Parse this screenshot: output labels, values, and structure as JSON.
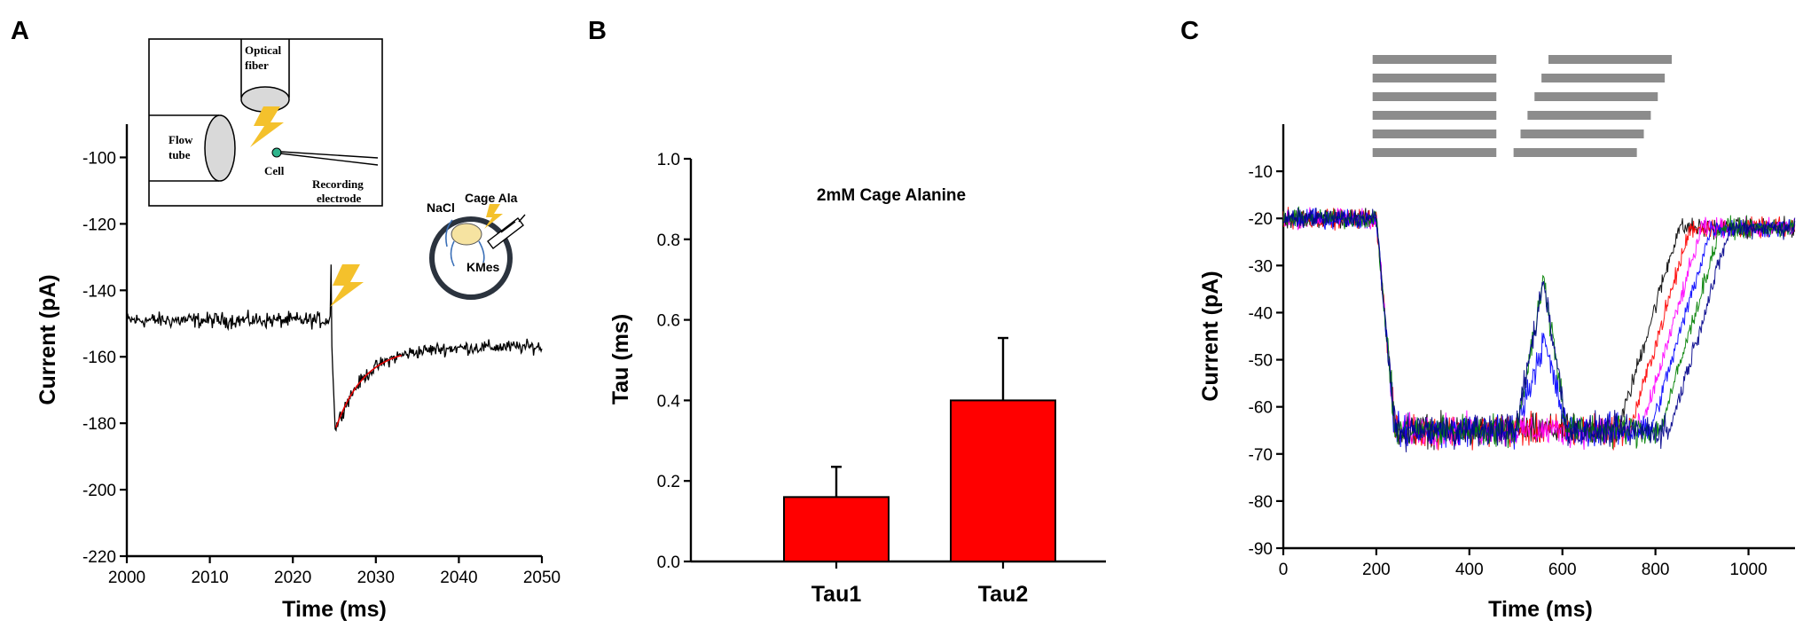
{
  "chart_data": [
    {
      "panel": "A",
      "type": "line",
      "xlabel": "Time (ms)",
      "ylabel": "Current (pA)",
      "xlim": [
        2000,
        2050
      ],
      "ylim": [
        -220,
        -90
      ],
      "xticks": [
        2000,
        2010,
        2020,
        2030,
        2040,
        2050
      ],
      "yticks": [
        -220,
        -200,
        -180,
        -160,
        -140,
        -120,
        -100
      ],
      "baseline": -149,
      "flash_time": 2024.6,
      "peak": -182,
      "recovery_end": -157,
      "fit_color": "#e60000",
      "trace_color": "#000000",
      "inset": {
        "optical_fiber_label": [
          "Optical",
          "fiber"
        ],
        "flow_tube_label": [
          "Flow",
          "tube"
        ],
        "cell_label": "Cell",
        "electrode_label": [
          "Recording",
          "electrode"
        ],
        "nacl_label": "NaCl",
        "cage_label": "Cage Ala",
        "kmes_label": "KMes"
      }
    },
    {
      "panel": "B",
      "type": "bar",
      "categories": [
        "Tau1",
        "Tau2"
      ],
      "values": [
        0.16,
        0.4
      ],
      "errors": [
        0.075,
        0.155
      ],
      "ylabel": "Tau (ms)",
      "ylim": [
        0,
        1.0
      ],
      "yticks": [
        "0.0",
        "0.2",
        "0.4",
        "0.6",
        "0.8",
        "1.0"
      ],
      "annotation": "2mM Cage Alanine",
      "bar_color": "#ff0000"
    },
    {
      "panel": "C",
      "type": "line",
      "xlabel": "Time (ms)",
      "ylabel": "Current (pA)",
      "xlim": [
        0,
        1100
      ],
      "ylim": [
        -90,
        0
      ],
      "xticks": [
        0,
        200,
        400,
        600,
        800,
        1000
      ],
      "yticks": [
        -90,
        -80,
        -70,
        -60,
        -50,
        -40,
        -30,
        -20,
        -10
      ],
      "series": [
        {
          "color": "#000000",
          "onset": 200,
          "recovery": 720
        },
        {
          "color": "#ff0000",
          "onset": 200,
          "recovery": 745
        },
        {
          "color": "#ff00ff",
          "onset": 200,
          "recovery": 770
        },
        {
          "color": "#0000ff",
          "onset": 200,
          "recovery": 790
        },
        {
          "color": "#008000",
          "onset": 200,
          "recovery": 810
        },
        {
          "color": "#00008b",
          "onset": 200,
          "recovery": 830
        }
      ],
      "transient": {
        "start": 500,
        "peak_time": 560,
        "peak": -33,
        "end": 610
      },
      "protocol_bars": [
        {
          "a": [
            192,
            458
          ],
          "b": [
            570,
            835
          ]
        },
        {
          "a": [
            192,
            458
          ],
          "b": [
            555,
            820
          ]
        },
        {
          "a": [
            192,
            458
          ],
          "b": [
            540,
            805
          ]
        },
        {
          "a": [
            192,
            458
          ],
          "b": [
            525,
            790
          ]
        },
        {
          "a": [
            192,
            458
          ],
          "b": [
            510,
            775
          ]
        },
        {
          "a": [
            192,
            458
          ],
          "b": [
            495,
            760
          ]
        }
      ]
    }
  ]
}
